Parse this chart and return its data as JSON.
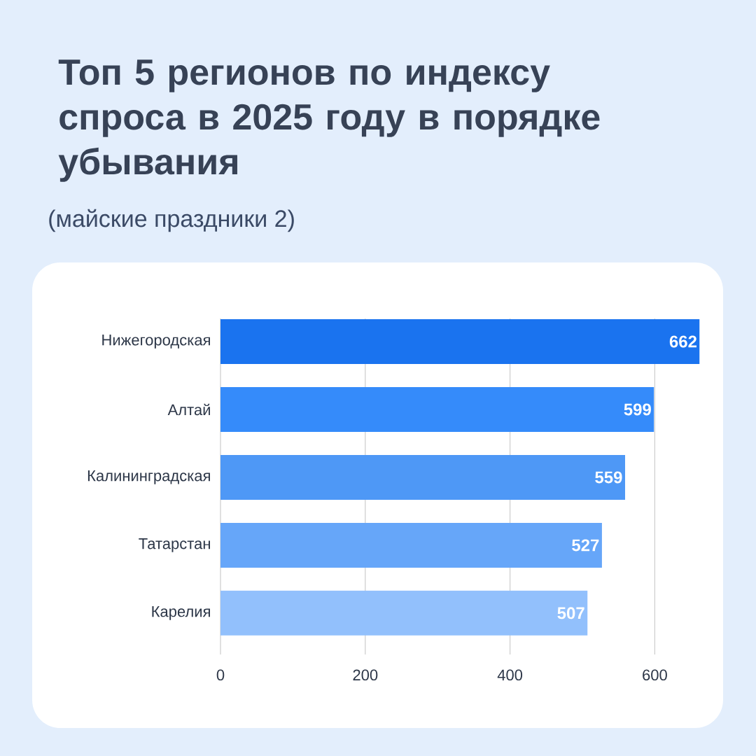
{
  "chart_data": {
    "type": "bar",
    "orientation": "horizontal",
    "title": "Топ 5 регионов по индексу спроса в 2025 году в порядке убывания",
    "subtitle": "(майские праздники 2)",
    "categories": [
      "Нижегородская",
      "Алтай",
      "Калининградская",
      "Татарстан",
      "Карелия"
    ],
    "values": [
      662,
      599,
      559,
      527,
      507
    ],
    "colors": [
      "#1a73ef",
      "#358bfa",
      "#4e98f6",
      "#66a6f9",
      "#92c0fc"
    ],
    "xlim": [
      0,
      662
    ],
    "xticks": [
      0,
      200,
      400,
      600
    ],
    "grid": "x",
    "data_labels": true
  }
}
